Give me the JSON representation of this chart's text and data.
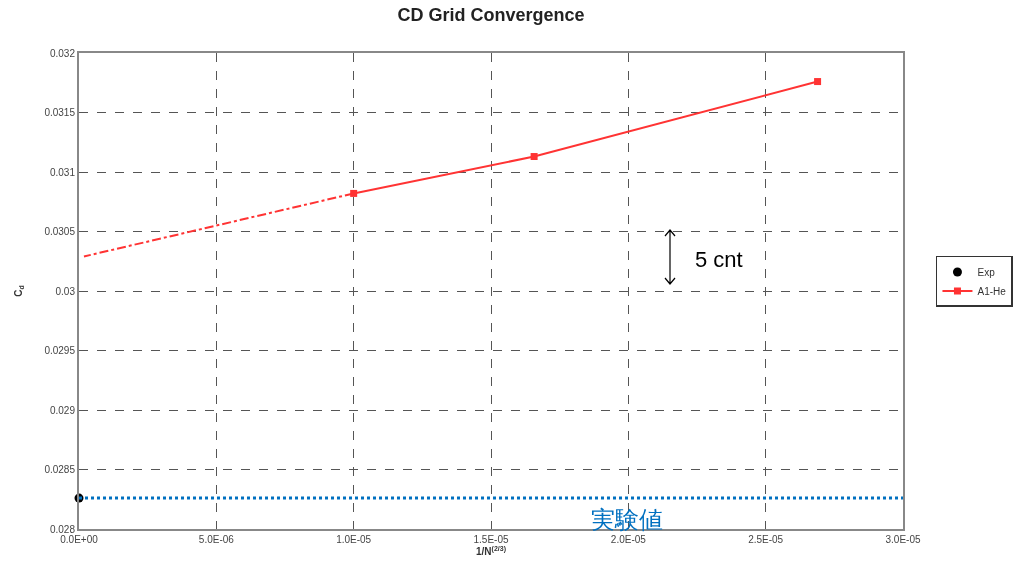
{
  "chart_data": {
    "type": "line",
    "title": "CD Grid Convergence",
    "xlabel": "1/N$^{(2/3)}$",
    "ylabel": "C$_{d}$",
    "xlim": [
      0,
      3e-05
    ],
    "xticks": [
      {
        "value": 0,
        "label": "0.0E+00"
      },
      {
        "value": 5e-06,
        "label": "5.0E-06"
      },
      {
        "value": 1e-05,
        "label": "1.0E-05"
      },
      {
        "value": 1.5e-05,
        "label": "1.5E-05"
      },
      {
        "value": 2e-05,
        "label": "2.0E-05"
      },
      {
        "value": 2.5e-05,
        "label": "2.5E-05"
      },
      {
        "value": 3e-05,
        "label": "3.0E-05"
      }
    ],
    "ylim": [
      0.028,
      0.032
    ],
    "yticks": [
      0.028,
      0.0285,
      0.029,
      0.0295,
      0.03,
      0.0305,
      0.031,
      0.0315,
      0.032
    ],
    "series": [
      {
        "name": "Exp",
        "type": "scatter",
        "marker": "circle",
        "color": "#000000",
        "x": [
          0
        ],
        "values": [
          0.02826
        ]
      },
      {
        "name": "A1-He",
        "type": "line",
        "marker": "square",
        "line_style": "solid",
        "color": "#ff3333",
        "x": [
          1e-05,
          1.657e-05,
          2.689e-05
        ],
        "values": [
          0.03082,
          0.03113,
          0.03176
        ]
      },
      {
        "type": "line",
        "marker": "none",
        "line_style": "dashed",
        "color": "#ff3333",
        "x": [
          1e-05,
          1.8e-07
        ],
        "values": [
          0.03082,
          0.03029
        ]
      }
    ],
    "ref_lines": [
      {
        "axis": "y",
        "value": 0.02826,
        "label": "実験値",
        "color": "#0070c0",
        "line_style": "dotted"
      }
    ],
    "annotations": [
      "5 cnt"
    ],
    "grid": true,
    "legend": "right"
  }
}
